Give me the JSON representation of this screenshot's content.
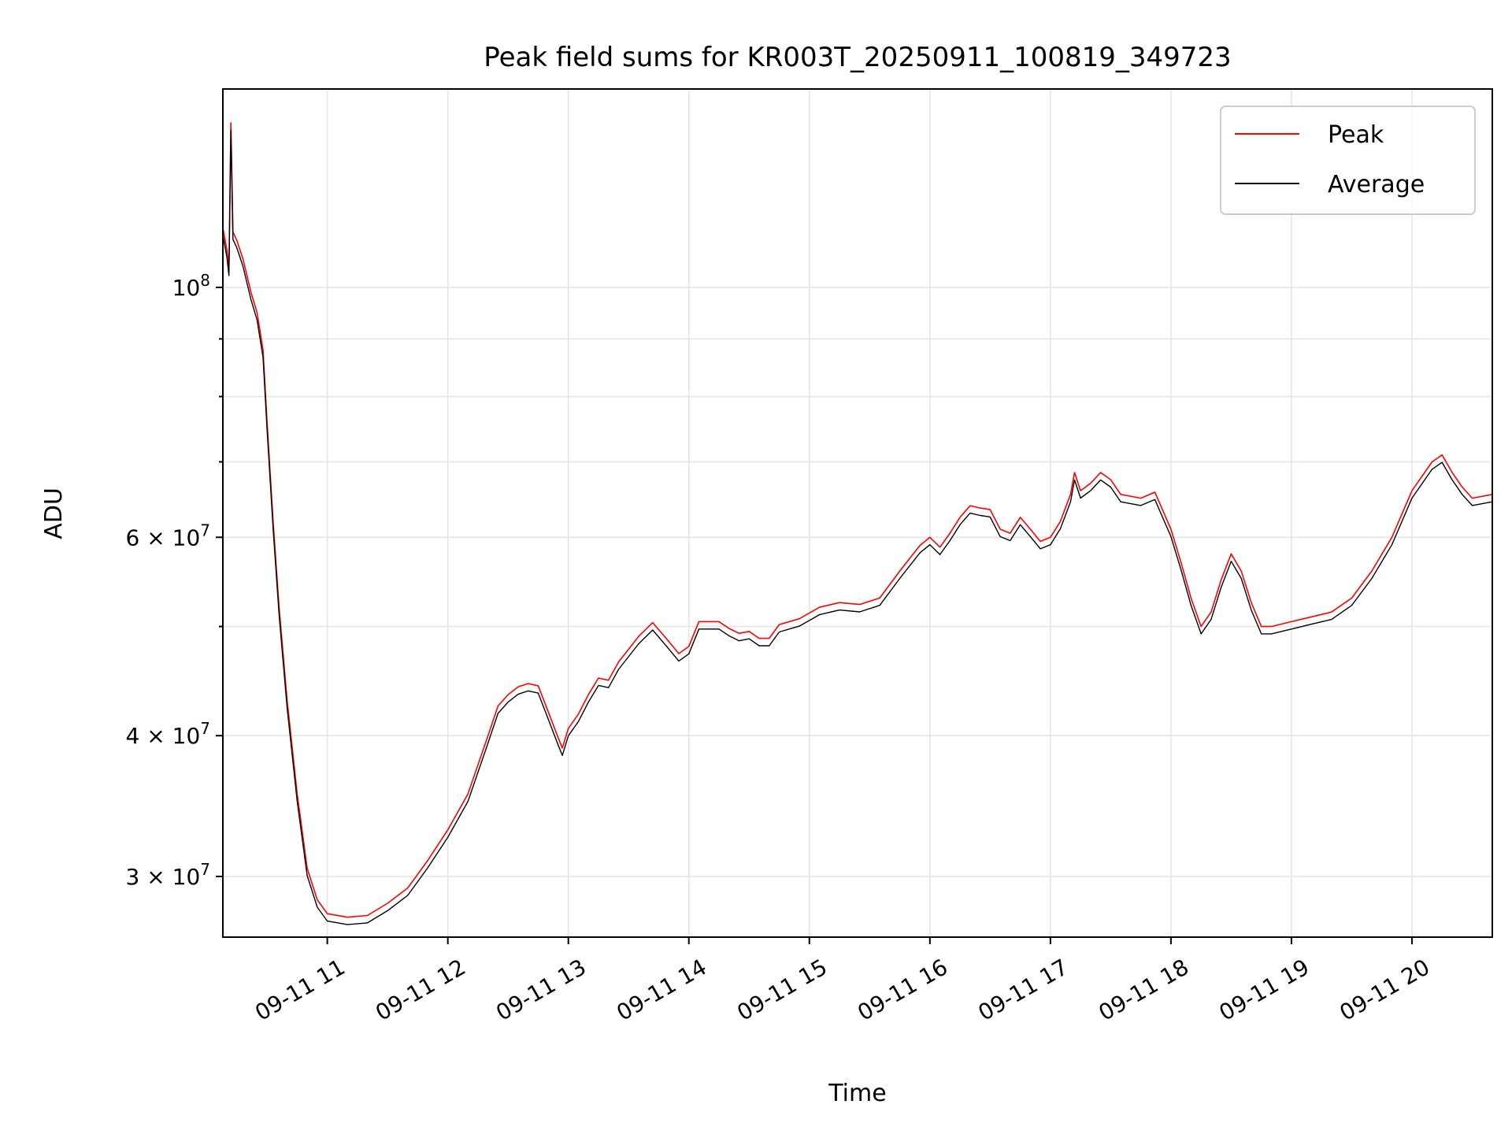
{
  "chart_data": {
    "type": "line",
    "title": "Peak field sums for KR003T_20250911_100819_349723",
    "xlabel": "Time",
    "ylabel": "ADU",
    "yscale": "log",
    "grid": true,
    "legend_position": "upper right",
    "xlim": [
      "2025-09-11 10:08",
      "2025-09-11 20:40"
    ],
    "ylim": [
      26500000,
      150000000
    ],
    "x_ticks": [
      {
        "time": "2025-09-11 11:00",
        "label": "09-11 11"
      },
      {
        "time": "2025-09-11 12:00",
        "label": "09-11 12"
      },
      {
        "time": "2025-09-11 13:00",
        "label": "09-11 13"
      },
      {
        "time": "2025-09-11 14:00",
        "label": "09-11 14"
      },
      {
        "time": "2025-09-11 15:00",
        "label": "09-11 15"
      },
      {
        "time": "2025-09-11 16:00",
        "label": "09-11 16"
      },
      {
        "time": "2025-09-11 17:00",
        "label": "09-11 17"
      },
      {
        "time": "2025-09-11 18:00",
        "label": "09-11 18"
      },
      {
        "time": "2025-09-11 19:00",
        "label": "09-11 19"
      },
      {
        "time": "2025-09-11 20:00",
        "label": "09-11 20"
      }
    ],
    "y_ticks": [
      {
        "value": 30000000,
        "mantissa": "3",
        "exponent": "7"
      },
      {
        "value": 40000000,
        "mantissa": "4",
        "exponent": "7"
      },
      {
        "value": 60000000,
        "mantissa": "6",
        "exponent": "7"
      },
      {
        "value": 100000000,
        "mantissa": "",
        "exponent": "8"
      }
    ],
    "y_minor_ticks": [
      50000000,
      70000000,
      80000000,
      90000000
    ],
    "series": [
      {
        "name": "Peak",
        "color": "#ff0000",
        "points": [
          [
            "2025-09-11 10:08",
            113000000
          ],
          [
            "2025-09-11 10:10",
            108000000
          ],
          [
            "2025-09-11 10:11",
            104000000
          ],
          [
            "2025-09-11 10:12",
            140000000
          ],
          [
            "2025-09-11 10:13",
            112000000
          ],
          [
            "2025-09-11 10:15",
            110000000
          ],
          [
            "2025-09-11 10:18",
            106000000
          ],
          [
            "2025-09-11 10:22",
            99000000
          ],
          [
            "2025-09-11 10:25",
            95000000
          ],
          [
            "2025-09-11 10:28",
            88000000
          ],
          [
            "2025-09-11 10:30",
            76000000
          ],
          [
            "2025-09-11 10:33",
            62000000
          ],
          [
            "2025-09-11 10:36",
            52000000
          ],
          [
            "2025-09-11 10:40",
            43000000
          ],
          [
            "2025-09-11 10:45",
            35500000
          ],
          [
            "2025-09-11 10:50",
            30500000
          ],
          [
            "2025-09-11 10:55",
            28600000
          ],
          [
            "2025-09-11 11:00",
            27800000
          ],
          [
            "2025-09-11 11:10",
            27600000
          ],
          [
            "2025-09-11 11:20",
            27700000
          ],
          [
            "2025-09-11 11:30",
            28400000
          ],
          [
            "2025-09-11 11:40",
            29300000
          ],
          [
            "2025-09-11 11:50",
            31000000
          ],
          [
            "2025-09-11 12:00",
            33000000
          ],
          [
            "2025-09-11 12:10",
            35500000
          ],
          [
            "2025-09-11 12:20",
            40000000
          ],
          [
            "2025-09-11 12:25",
            42500000
          ],
          [
            "2025-09-11 12:30",
            43500000
          ],
          [
            "2025-09-11 12:35",
            44200000
          ],
          [
            "2025-09-11 12:40",
            44500000
          ],
          [
            "2025-09-11 12:45",
            44300000
          ],
          [
            "2025-09-11 12:50",
            42000000
          ],
          [
            "2025-09-11 12:55",
            39800000
          ],
          [
            "2025-09-11 12:57",
            39000000
          ],
          [
            "2025-09-11 13:00",
            40600000
          ],
          [
            "2025-09-11 13:05",
            41800000
          ],
          [
            "2025-09-11 13:10",
            43500000
          ],
          [
            "2025-09-11 13:15",
            45000000
          ],
          [
            "2025-09-11 13:20",
            44800000
          ],
          [
            "2025-09-11 13:25",
            46500000
          ],
          [
            "2025-09-11 13:35",
            49000000
          ],
          [
            "2025-09-11 13:42",
            50400000
          ],
          [
            "2025-09-11 13:50",
            48500000
          ],
          [
            "2025-09-11 13:55",
            47300000
          ],
          [
            "2025-09-11 14:00",
            48000000
          ],
          [
            "2025-09-11 14:05",
            50500000
          ],
          [
            "2025-09-11 14:15",
            50500000
          ],
          [
            "2025-09-11 14:20",
            49800000
          ],
          [
            "2025-09-11 14:25",
            49300000
          ],
          [
            "2025-09-11 14:30",
            49500000
          ],
          [
            "2025-09-11 14:35",
            48800000
          ],
          [
            "2025-09-11 14:40",
            48800000
          ],
          [
            "2025-09-11 14:45",
            50200000
          ],
          [
            "2025-09-11 14:55",
            50800000
          ],
          [
            "2025-09-11 15:05",
            52000000
          ],
          [
            "2025-09-11 15:15",
            52500000
          ],
          [
            "2025-09-11 15:25",
            52300000
          ],
          [
            "2025-09-11 15:35",
            53000000
          ],
          [
            "2025-09-11 15:45",
            56000000
          ],
          [
            "2025-09-11 15:55",
            59000000
          ],
          [
            "2025-09-11 16:00",
            60000000
          ],
          [
            "2025-09-11 16:05",
            58800000
          ],
          [
            "2025-09-11 16:10",
            60500000
          ],
          [
            "2025-09-11 16:15",
            62500000
          ],
          [
            "2025-09-11 16:20",
            64000000
          ],
          [
            "2025-09-11 16:25",
            63700000
          ],
          [
            "2025-09-11 16:30",
            63500000
          ],
          [
            "2025-09-11 16:35",
            61000000
          ],
          [
            "2025-09-11 16:40",
            60500000
          ],
          [
            "2025-09-11 16:45",
            62500000
          ],
          [
            "2025-09-11 16:50",
            61000000
          ],
          [
            "2025-09-11 16:55",
            59500000
          ],
          [
            "2025-09-11 17:00",
            60000000
          ],
          [
            "2025-09-11 17:05",
            62000000
          ],
          [
            "2025-09-11 17:10",
            65500000
          ],
          [
            "2025-09-11 17:12",
            68500000
          ],
          [
            "2025-09-11 17:15",
            66000000
          ],
          [
            "2025-09-11 17:20",
            67000000
          ],
          [
            "2025-09-11 17:25",
            68500000
          ],
          [
            "2025-09-11 17:30",
            67500000
          ],
          [
            "2025-09-11 17:35",
            65500000
          ],
          [
            "2025-09-11 17:45",
            65000000
          ],
          [
            "2025-09-11 17:52",
            65800000
          ],
          [
            "2025-09-11 18:00",
            61000000
          ],
          [
            "2025-09-11 18:05",
            57000000
          ],
          [
            "2025-09-11 18:10",
            53000000
          ],
          [
            "2025-09-11 18:15",
            50000000
          ],
          [
            "2025-09-11 18:20",
            51500000
          ],
          [
            "2025-09-11 18:25",
            55000000
          ],
          [
            "2025-09-11 18:30",
            58000000
          ],
          [
            "2025-09-11 18:35",
            56000000
          ],
          [
            "2025-09-11 18:40",
            52500000
          ],
          [
            "2025-09-11 18:45",
            50000000
          ],
          [
            "2025-09-11 18:50",
            50000000
          ],
          [
            "2025-09-11 19:00",
            50500000
          ],
          [
            "2025-09-11 19:10",
            51000000
          ],
          [
            "2025-09-11 19:20",
            51500000
          ],
          [
            "2025-09-11 19:30",
            53000000
          ],
          [
            "2025-09-11 19:40",
            56000000
          ],
          [
            "2025-09-11 19:50",
            60000000
          ],
          [
            "2025-09-11 20:00",
            66000000
          ],
          [
            "2025-09-11 20:10",
            70000000
          ],
          [
            "2025-09-11 20:15",
            71000000
          ],
          [
            "2025-09-11 20:20",
            68500000
          ],
          [
            "2025-09-11 20:25",
            66500000
          ],
          [
            "2025-09-11 20:30",
            65000000
          ],
          [
            "2025-09-11 20:40",
            65500000
          ]
        ]
      },
      {
        "name": "Average",
        "color": "#000000",
        "points": []
      }
    ]
  }
}
